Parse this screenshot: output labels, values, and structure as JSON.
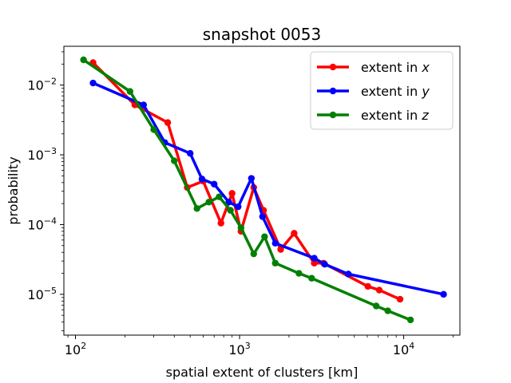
{
  "chart_data": {
    "type": "line",
    "title": "snapshot 0053",
    "xlabel": "spatial extent of clusters [km]",
    "ylabel": "probability",
    "xscale": "log",
    "yscale": "log",
    "xlim": [
      85,
      22000
    ],
    "ylim": [
      2.6e-06,
      0.036
    ],
    "legend_position": "top-right",
    "x_ticks": [
      {
        "base": "10",
        "exp": "2"
      },
      {
        "base": "10",
        "exp": "3"
      },
      {
        "base": "10",
        "exp": "4"
      }
    ],
    "y_ticks": [
      {
        "base": "10",
        "exp": "−2"
      },
      {
        "base": "10",
        "exp": "−3"
      },
      {
        "base": "10",
        "exp": "−4"
      },
      {
        "base": "10",
        "exp": "−5"
      }
    ],
    "series": [
      {
        "name": "extent in x",
        "label_prefix": "extent in ",
        "label_var": "x",
        "color": "#ff0000",
        "x": [
          128,
          230,
          365,
          480,
          600,
          770,
          900,
          1020,
          1220,
          1400,
          1780,
          2150,
          2850,
          3250,
          6050,
          7100,
          9500
        ],
        "y": [
          0.021,
          0.0052,
          0.0029,
          0.00034,
          0.00042,
          0.000105,
          0.00028,
          8e-05,
          0.00034,
          0.00016,
          4.4e-05,
          7.5e-05,
          2.8e-05,
          2.8e-05,
          1.3e-05,
          1.15e-05,
          8.5e-06
        ]
      },
      {
        "name": "extent in y",
        "label_prefix": "extent in ",
        "label_var": "y",
        "color": "#0000ff",
        "x": [
          128,
          260,
          350,
          500,
          590,
          700,
          860,
          980,
          1180,
          1380,
          1650,
          2850,
          3300,
          4600,
          17500
        ],
        "y": [
          0.0107,
          0.0052,
          0.0015,
          0.00105,
          0.00045,
          0.00038,
          0.00021,
          0.00018,
          0.00046,
          0.00013,
          5.4e-05,
          3.3e-05,
          2.7e-05,
          1.95e-05,
          1e-05
        ]
      },
      {
        "name": "extent in z",
        "label_prefix": "extent in ",
        "label_var": "z",
        "color": "#008000",
        "x": [
          112,
          215,
          300,
          400,
          550,
          650,
          750,
          880,
          1020,
          1220,
          1420,
          1650,
          2300,
          2750,
          6800,
          8000,
          11000
        ],
        "y": [
          0.023,
          0.0081,
          0.0023,
          0.00082,
          0.00017,
          0.00021,
          0.00025,
          0.00016,
          9e-05,
          3.8e-05,
          6.7e-05,
          2.8e-05,
          2e-05,
          1.7e-05,
          6.8e-06,
          5.8e-06,
          4.3e-06
        ]
      }
    ]
  }
}
